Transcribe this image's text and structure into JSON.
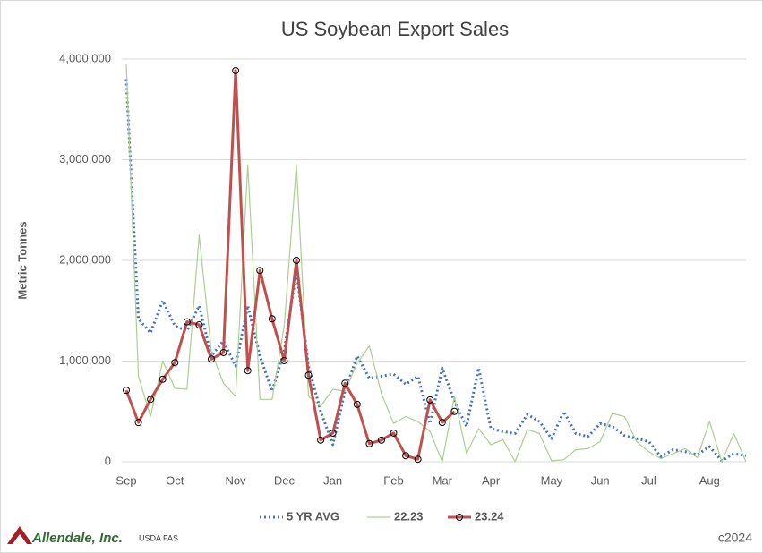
{
  "chart_data": {
    "type": "line",
    "title": "US Soybean Export Sales",
    "y_label": "Metric Tonnes",
    "categories": [
      "Sep",
      null,
      null,
      null,
      "Oct",
      null,
      null,
      null,
      null,
      "Nov",
      null,
      null,
      null,
      "Dec",
      null,
      null,
      null,
      "Jan",
      null,
      null,
      null,
      null,
      "Feb",
      null,
      null,
      null,
      "Mar",
      null,
      null,
      null,
      "Apr",
      null,
      null,
      null,
      null,
      "May",
      null,
      null,
      null,
      "Jun",
      null,
      null,
      null,
      "Jul",
      null,
      null,
      null,
      null,
      "Aug",
      null,
      null,
      null
    ],
    "series": [
      {
        "name": "5 YR AVG",
        "color": "#4472c4",
        "line_style": "dotted",
        "markers": false,
        "values": [
          3800000,
          1420000,
          1280000,
          1600000,
          1350000,
          1300000,
          1550000,
          1050000,
          1200000,
          950000,
          1550000,
          1050000,
          700000,
          1100000,
          1900000,
          950000,
          500000,
          170000,
          700000,
          1050000,
          830000,
          850000,
          870000,
          770000,
          850000,
          380000,
          930000,
          600000,
          350000,
          930000,
          330000,
          300000,
          280000,
          470000,
          400000,
          230000,
          500000,
          280000,
          250000,
          380000,
          350000,
          260000,
          230000,
          200000,
          50000,
          120000,
          100000,
          70000,
          150000,
          10000,
          80000,
          60000
        ]
      },
      {
        "name": "22.23",
        "color": "#a9d18e",
        "line_style": "solid",
        "markers": false,
        "values": [
          3950000,
          850000,
          450000,
          1000000,
          730000,
          720000,
          2250000,
          1100000,
          780000,
          650000,
          2950000,
          620000,
          620000,
          1350000,
          2950000,
          650000,
          550000,
          720000,
          700000,
          980000,
          1150000,
          680000,
          380000,
          450000,
          400000,
          300000,
          0,
          650000,
          80000,
          330000,
          170000,
          220000,
          0,
          320000,
          280000,
          10000,
          20000,
          120000,
          130000,
          200000,
          480000,
          450000,
          200000,
          100000,
          30000,
          80000,
          130000,
          40000,
          400000,
          0,
          280000,
          0
        ]
      },
      {
        "name": "23.24",
        "color": "#c0504d",
        "line_style": "solid",
        "markers": true,
        "values": [
          710000,
          390000,
          620000,
          820000,
          985000,
          1390000,
          1360000,
          1020000,
          1085000,
          3885000,
          905000,
          1900000,
          1420000,
          1005000,
          2000000,
          860000,
          215000,
          285000,
          780000,
          570000,
          180000,
          215000,
          285000,
          60000,
          25000,
          615000,
          390000,
          500000,
          null,
          null,
          null,
          null,
          null,
          null,
          null,
          null,
          null,
          null,
          null,
          null,
          null,
          null,
          null,
          null,
          null,
          null,
          null,
          null,
          null,
          null,
          null,
          null
        ]
      }
    ],
    "ylim": [
      0,
      4000000
    ],
    "yticks": [
      0,
      {
        "value": 1000000,
        "label": "1,000,000"
      },
      {
        "value": 2000000,
        "label": "2,000,000"
      },
      {
        "value": 3000000,
        "label": "3,000,000"
      },
      {
        "value": 4000000,
        "label": "4,000,000"
      }
    ],
    "grid": true,
    "legend": "bottom",
    "logo": "Allendale, Inc.",
    "source": "USDA FAS",
    "copyright": "c2024"
  }
}
